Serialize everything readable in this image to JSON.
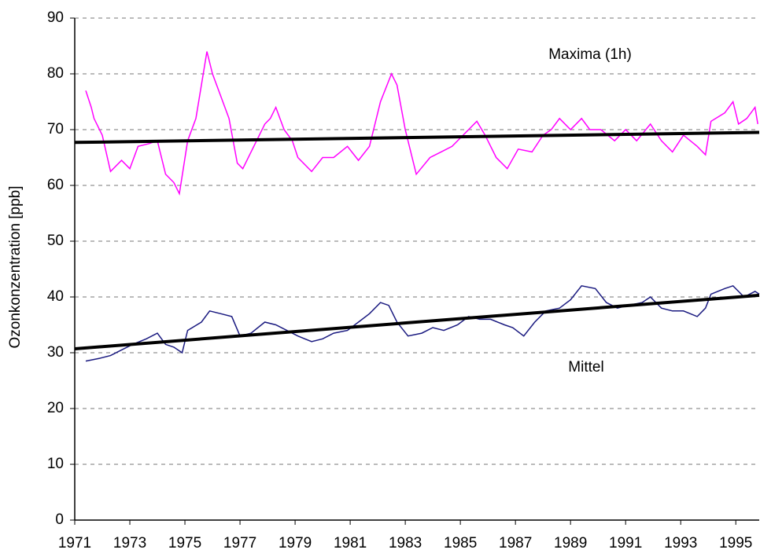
{
  "chart_data": {
    "type": "line",
    "y_label": "Ozonkonzentration [ppb]",
    "xlim": [
      1971,
      1995.85
    ],
    "xticks": [
      1971,
      1973,
      1975,
      1977,
      1979,
      1981,
      1983,
      1985,
      1987,
      1989,
      1991,
      1993,
      1995
    ],
    "ylim": [
      0,
      90
    ],
    "yticks": [
      0,
      10,
      20,
      30,
      40,
      50,
      60,
      70,
      80,
      90
    ],
    "grid": true,
    "series": [
      {
        "name": "Maxima (1h)",
        "color": "#ff00ff",
        "x": [
          1971.4,
          1971.6,
          1971.7,
          1972.0,
          1972.3,
          1972.7,
          1973.0,
          1973.3,
          1973.7,
          1974.0,
          1974.3,
          1974.6,
          1974.8,
          1975.1,
          1975.4,
          1975.8,
          1976.0,
          1976.3,
          1976.6,
          1976.9,
          1977.1,
          1977.4,
          1977.9,
          1978.1,
          1978.3,
          1978.6,
          1978.9,
          1979.1,
          1979.6,
          1980.0,
          1980.4,
          1980.9,
          1981.3,
          1981.7,
          1982.1,
          1982.5,
          1982.7,
          1983.0,
          1983.4,
          1983.9,
          1984.3,
          1984.7,
          1985.1,
          1985.6,
          1985.9,
          1986.3,
          1986.7,
          1987.1,
          1987.6,
          1988.0,
          1988.3,
          1988.6,
          1989.0,
          1989.4,
          1989.7,
          1990.1,
          1990.6,
          1991.0,
          1991.4,
          1991.9,
          1992.3,
          1992.7,
          1993.1,
          1993.6,
          1993.9,
          1994.1,
          1994.6,
          1994.9,
          1995.1,
          1995.4,
          1995.7,
          1995.8
        ],
        "values": [
          77,
          74,
          72,
          69,
          62.5,
          64.5,
          63,
          67,
          67.5,
          68,
          62,
          60.5,
          58.5,
          68,
          72,
          84,
          80,
          76,
          72,
          64,
          63,
          66,
          71,
          72,
          74,
          70,
          68,
          65,
          62.5,
          65,
          65,
          67,
          64.5,
          67,
          75,
          80,
          78,
          70,
          62,
          65,
          66,
          67,
          69,
          71.5,
          69,
          65,
          63,
          66.5,
          66,
          69,
          70,
          72,
          70,
          72,
          70,
          70,
          68,
          70,
          68,
          71,
          68,
          66,
          69,
          67,
          65.5,
          71.5,
          73,
          75,
          71,
          72,
          74,
          71
        ]
      },
      {
        "name": "Mittel",
        "color": "#1a1a80",
        "x": [
          1971.4,
          1971.9,
          1972.3,
          1972.7,
          1973.1,
          1973.6,
          1974.0,
          1974.3,
          1974.6,
          1974.9,
          1975.1,
          1975.6,
          1975.9,
          1976.3,
          1976.7,
          1977.0,
          1977.4,
          1977.9,
          1978.3,
          1978.7,
          1979.1,
          1979.6,
          1980.0,
          1980.4,
          1980.9,
          1981.3,
          1981.7,
          1982.1,
          1982.4,
          1982.7,
          1983.1,
          1983.6,
          1984.0,
          1984.4,
          1984.9,
          1985.3,
          1985.7,
          1986.1,
          1986.6,
          1986.9,
          1987.3,
          1987.7,
          1988.1,
          1988.6,
          1989.0,
          1989.4,
          1989.9,
          1990.3,
          1990.7,
          1991.1,
          1991.6,
          1991.9,
          1992.3,
          1992.7,
          1993.1,
          1993.6,
          1993.9,
          1994.1,
          1994.6,
          1994.9,
          1995.3,
          1995.7,
          1995.85
        ],
        "values": [
          28.5,
          29,
          29.5,
          30.5,
          31.5,
          32.5,
          33.5,
          31.5,
          31,
          30,
          34,
          35.5,
          37.5,
          37,
          36.5,
          33,
          33.5,
          35.5,
          35,
          34,
          33,
          32,
          32.5,
          33.5,
          34,
          35.5,
          37,
          39,
          38.5,
          35.5,
          33,
          33.5,
          34.5,
          34,
          35,
          36.5,
          36,
          36,
          35,
          34.5,
          33,
          35.5,
          37.5,
          38,
          39.5,
          42,
          41.5,
          39,
          38,
          38.5,
          39,
          40,
          38,
          37.5,
          37.5,
          36.5,
          38,
          40.5,
          41.5,
          42,
          40,
          41,
          40.5
        ]
      },
      {
        "color": "#000000",
        "width": 4,
        "x": [
          1971,
          1995.85
        ],
        "values": [
          67.7,
          69.5
        ]
      },
      {
        "color": "#000000",
        "width": 4,
        "x": [
          1971,
          1995.85
        ],
        "values": [
          30.7,
          40.3
        ]
      }
    ]
  }
}
